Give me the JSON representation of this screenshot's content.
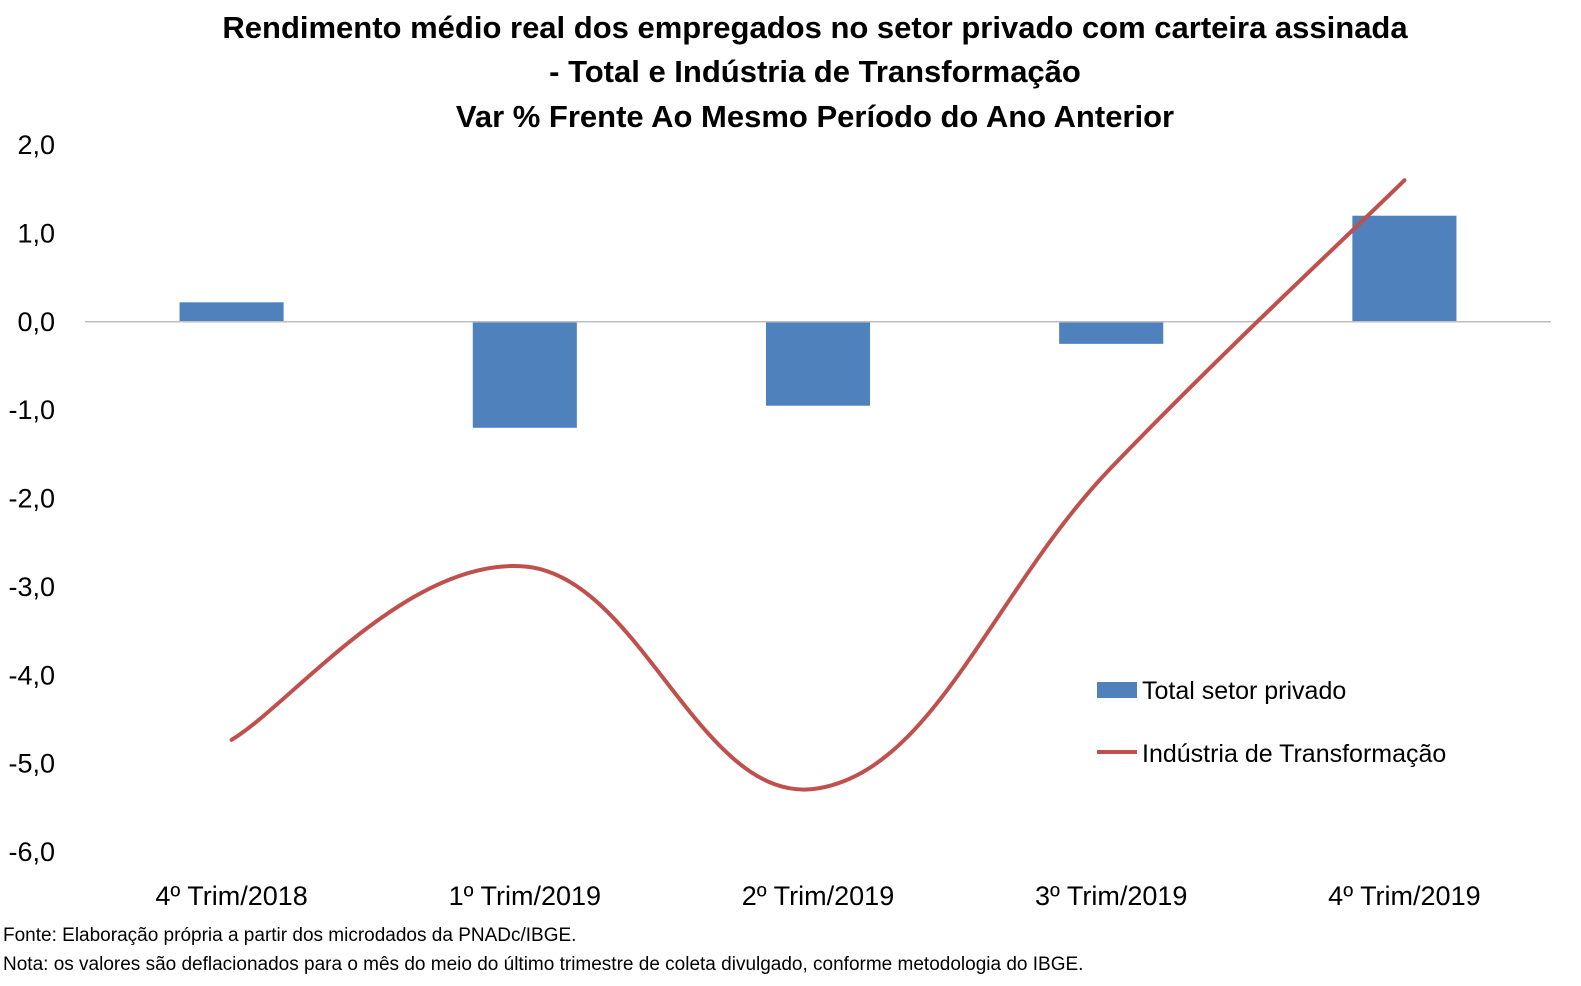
{
  "chart_data": {
    "type": "bar",
    "title_lines": [
      "Rendimento médio real dos empregados no setor privado com carteira assinada",
      "- Total e Indústria de Transformação",
      "Var % Frente Ao Mesmo Período do Ano Anterior"
    ],
    "categories": [
      "4º Trim/2018",
      "1º Trim/2019",
      "2º Trim/2019",
      "3º Trim/2019",
      "4º Trim/2019"
    ],
    "y_ticks": [
      "2,0",
      "1,0",
      "0,0",
      "-1,0",
      "-2,0",
      "-3,0",
      "-4,0",
      "-5,0",
      "-6,0"
    ],
    "ylim": [
      -6,
      2
    ],
    "series": [
      {
        "name": "Total setor privado",
        "type": "bar",
        "color": "#4F81BD",
        "values": [
          0.22,
          -1.2,
          -0.95,
          -0.25,
          1.2
        ]
      },
      {
        "name": "Indústria de Transformação",
        "type": "line",
        "color": "#C0504D",
        "values": [
          -4.73,
          -2.77,
          -5.28,
          -1.65,
          1.6
        ]
      }
    ],
    "legend_position": "right"
  },
  "footer": {
    "source": "Fonte: Elaboração própria a partir dos microdados da PNADc/IBGE.",
    "note": "Nota: os valores são deflacionados para o mês do meio do último trimestre de coleta divulgado, conforme metodologia do IBGE."
  }
}
